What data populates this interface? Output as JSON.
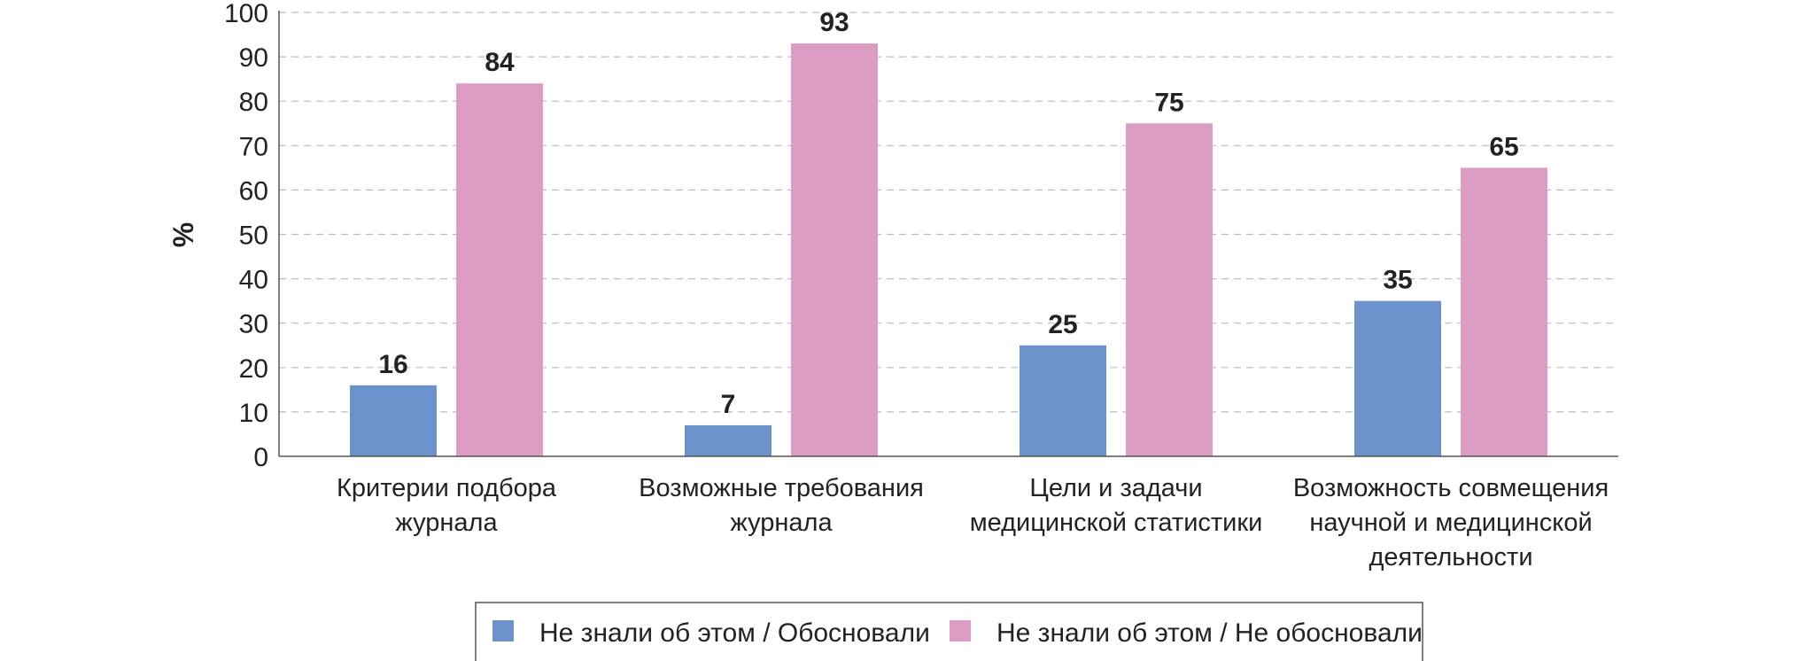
{
  "chart_data": {
    "type": "bar",
    "categories": [
      [
        "Критерии подбора",
        "журнала"
      ],
      [
        "Возможные требования",
        "журнала"
      ],
      [
        "Цели и задачи",
        "медицинской статистики"
      ],
      [
        "Возможность совмещения",
        "научной и медицинской",
        "деятельности"
      ]
    ],
    "series": [
      {
        "name": "Не знали об этом / Обосновали",
        "color": "#6b92cb",
        "values": [
          16,
          7,
          25,
          35
        ]
      },
      {
        "name": "Не знали об этом / Не обосновали",
        "color": "#dd9cc4",
        "values": [
          84,
          93,
          75,
          65
        ]
      }
    ],
    "ylabel": "%",
    "ylim": [
      0,
      100
    ],
    "yticks": [
      0,
      10,
      20,
      30,
      40,
      50,
      60,
      70,
      80,
      90,
      100
    ],
    "grid": true,
    "legend_position": "bottom"
  }
}
